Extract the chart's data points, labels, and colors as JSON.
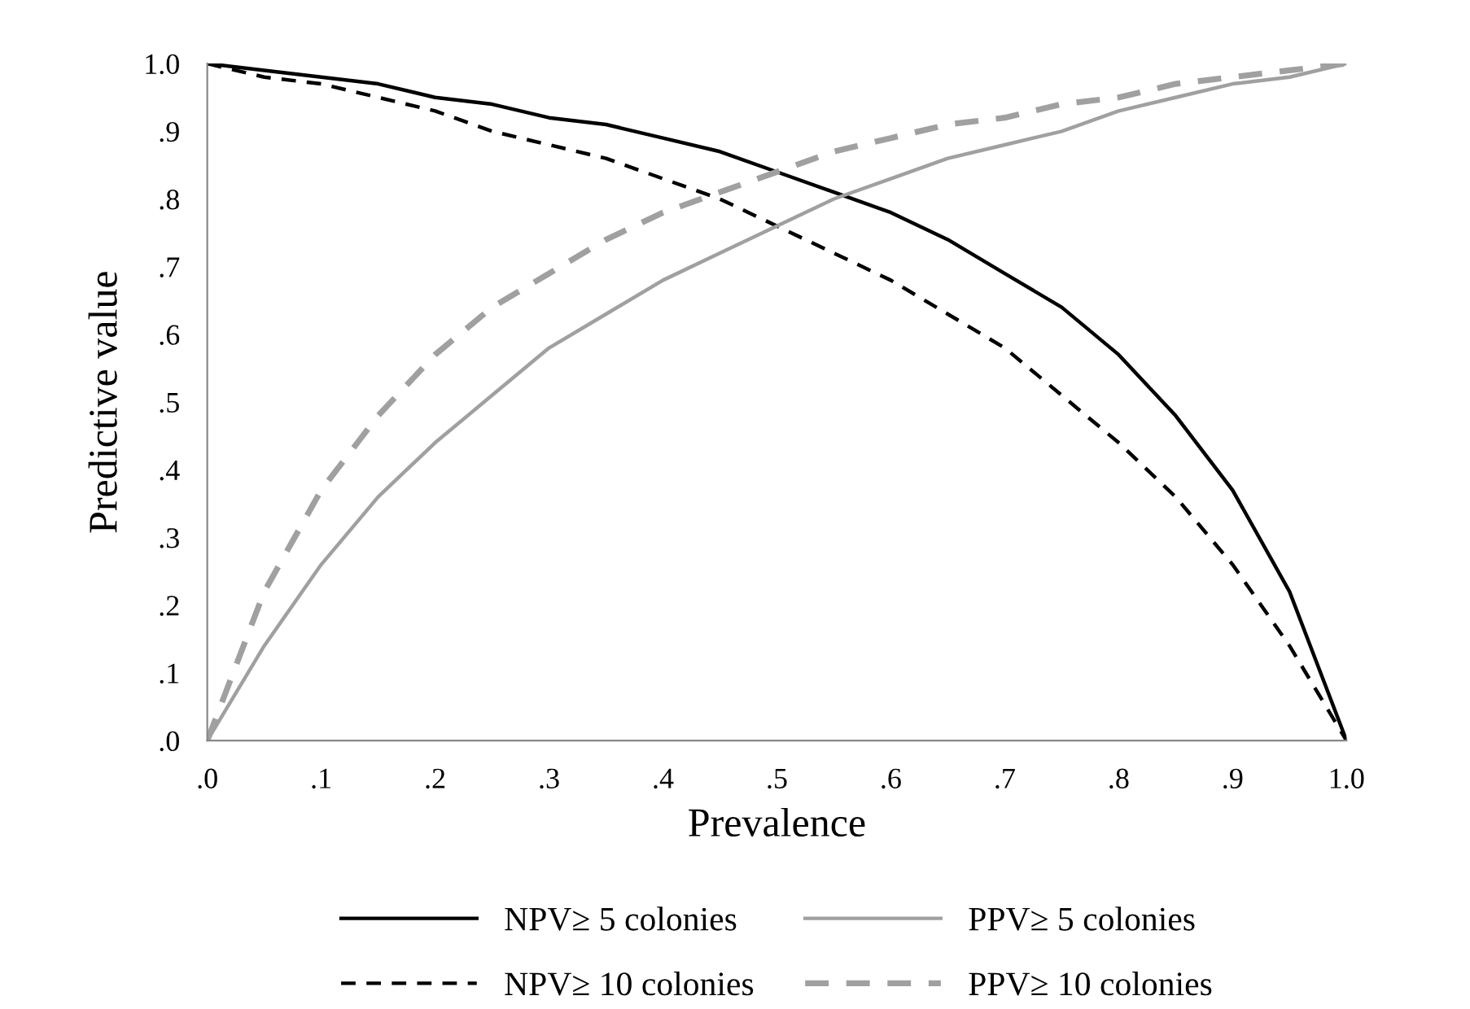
{
  "chart_data": {
    "type": "line",
    "xlabel": "Prevalence",
    "ylabel": "Predictive value",
    "x": [
      0,
      0.05,
      0.1,
      0.15,
      0.2,
      0.25,
      0.3,
      0.35,
      0.4,
      0.45,
      0.5,
      0.55,
      0.6,
      0.65,
      0.7,
      0.75,
      0.8,
      0.85,
      0.9,
      0.95,
      1
    ],
    "series": [
      {
        "name": "NPV≥ 5 colonies",
        "color": "#000000",
        "line_style": "solid",
        "values": [
          1,
          0.99,
          0.98,
          0.97,
          0.95,
          0.94,
          0.92,
          0.91,
          0.89,
          0.87,
          0.84,
          0.81,
          0.78,
          0.74,
          0.69,
          0.64,
          0.57,
          0.48,
          0.37,
          0.22,
          0
        ]
      },
      {
        "name": "NPV≥ 10 colonies",
        "color": "#000000",
        "line_style": "dashed",
        "values": [
          1,
          0.98,
          0.97,
          0.95,
          0.93,
          0.9,
          0.88,
          0.86,
          0.83,
          0.8,
          0.76,
          0.72,
          0.68,
          0.63,
          0.58,
          0.51,
          0.44,
          0.36,
          0.26,
          0.14,
          0
        ]
      },
      {
        "name": "PPV≥ 5 colonies",
        "color": "#a0a0a0",
        "line_style": "solid",
        "values": [
          0,
          0.14,
          0.26,
          0.36,
          0.44,
          0.51,
          0.58,
          0.63,
          0.68,
          0.72,
          0.76,
          0.8,
          0.83,
          0.86,
          0.88,
          0.9,
          0.93,
          0.95,
          0.97,
          0.98,
          1
        ]
      },
      {
        "name": "PPV≥ 10 colonies",
        "color": "#a0a0a0",
        "line_style": "dashed",
        "values": [
          0,
          0.22,
          0.37,
          0.48,
          0.57,
          0.64,
          0.69,
          0.74,
          0.78,
          0.81,
          0.84,
          0.87,
          0.89,
          0.91,
          0.92,
          0.94,
          0.95,
          0.97,
          0.98,
          0.99,
          1
        ]
      }
    ],
    "xlim": [
      0,
      1
    ],
    "ylim": [
      0,
      1
    ],
    "xticks": [
      {
        "value": 0,
        "label": ".0"
      },
      {
        "value": 0.1,
        "label": ".1"
      },
      {
        "value": 0.2,
        "label": ".2"
      },
      {
        "value": 0.3,
        "label": ".3"
      },
      {
        "value": 0.4,
        "label": ".4"
      },
      {
        "value": 0.5,
        "label": ".5"
      },
      {
        "value": 0.6,
        "label": ".6"
      },
      {
        "value": 0.7,
        "label": ".7"
      },
      {
        "value": 0.8,
        "label": ".8"
      },
      {
        "value": 0.9,
        "label": ".9"
      },
      {
        "value": 1,
        "label": "1.0"
      }
    ],
    "yticks": [
      {
        "value": 0,
        "label": ".0"
      },
      {
        "value": 0.1,
        "label": ".1"
      },
      {
        "value": 0.2,
        "label": ".2"
      },
      {
        "value": 0.3,
        "label": ".3"
      },
      {
        "value": 0.4,
        "label": ".4"
      },
      {
        "value": 0.5,
        "label": ".5"
      },
      {
        "value": 0.6,
        "label": ".6"
      },
      {
        "value": 0.7,
        "label": ".7"
      },
      {
        "value": 0.8,
        "label": ".8"
      },
      {
        "value": 0.9,
        "label": ".9"
      },
      {
        "value": 1,
        "label": "1.0"
      }
    ],
    "grid": false,
    "legend": "bottom",
    "marker": "none"
  }
}
